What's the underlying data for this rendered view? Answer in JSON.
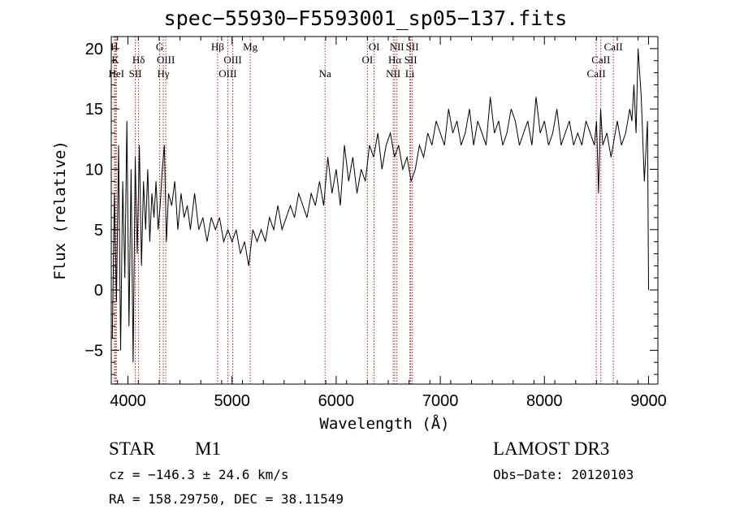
{
  "chart_data": {
    "type": "line",
    "title": "spec−55930−F5593001_sp05−137.fits",
    "xlabel": "Wavelength (Å)",
    "ylabel": "Flux (relative)",
    "xlim": [
      3840,
      9090
    ],
    "ylim": [
      -7.8,
      21
    ],
    "xticks": [
      4000,
      5000,
      6000,
      7000,
      8000,
      9000
    ],
    "yticks": [
      -5,
      0,
      5,
      10,
      15,
      20
    ],
    "xtick_labels": [
      "4000",
      "5000",
      "6000",
      "7000",
      "8000",
      "9000"
    ],
    "ytick_labels": [
      "−5",
      "0",
      "5",
      "10",
      "15",
      "20"
    ],
    "series": [
      {
        "name": "flux",
        "x": [
          3850,
          3870,
          3890,
          3910,
          3930,
          3950,
          3970,
          3990,
          4010,
          4030,
          4050,
          4070,
          4090,
          4110,
          4130,
          4150,
          4170,
          4190,
          4210,
          4230,
          4250,
          4270,
          4290,
          4310,
          4330,
          4350,
          4370,
          4390,
          4420,
          4450,
          4480,
          4510,
          4540,
          4570,
          4600,
          4640,
          4680,
          4720,
          4760,
          4800,
          4840,
          4880,
          4920,
          4960,
          5000,
          5040,
          5080,
          5120,
          5160,
          5200,
          5240,
          5280,
          5320,
          5360,
          5400,
          5440,
          5480,
          5520,
          5560,
          5600,
          5640,
          5680,
          5720,
          5760,
          5800,
          5840,
          5880,
          5920,
          5960,
          6000,
          6040,
          6080,
          6120,
          6160,
          6200,
          6240,
          6280,
          6320,
          6360,
          6400,
          6440,
          6480,
          6520,
          6560,
          6600,
          6640,
          6680,
          6720,
          6760,
          6800,
          6840,
          6880,
          6920,
          6960,
          7000,
          7040,
          7080,
          7120,
          7160,
          7200,
          7240,
          7280,
          7320,
          7360,
          7400,
          7440,
          7480,
          7520,
          7560,
          7600,
          7640,
          7680,
          7720,
          7760,
          7800,
          7840,
          7880,
          7920,
          7960,
          8000,
          8040,
          8080,
          8120,
          8160,
          8200,
          8240,
          8280,
          8320,
          8360,
          8400,
          8440,
          8480,
          8500,
          8520,
          8540,
          8560,
          8600,
          8640,
          8660,
          8680,
          8700,
          8740,
          8780,
          8820,
          8840,
          8860,
          8880,
          8900,
          8930,
          8960,
          8990,
          9000
        ],
        "values": [
          -4,
          8,
          -1,
          12,
          -5,
          9,
          1,
          14,
          -3,
          10,
          -6,
          11,
          3,
          12,
          2,
          9,
          5,
          10,
          4,
          8,
          6,
          9,
          5,
          7,
          10,
          12,
          4,
          8,
          7,
          9,
          5,
          8,
          6,
          7,
          5,
          8,
          5,
          6,
          4,
          6,
          5,
          6,
          4,
          5,
          4,
          5,
          3,
          4,
          2,
          5,
          4,
          5,
          4,
          6,
          5,
          7,
          5,
          6,
          7,
          6,
          8,
          7,
          6,
          8,
          7,
          9,
          7,
          11,
          8,
          10,
          7,
          12,
          9,
          11,
          8,
          10,
          9,
          12,
          11,
          13,
          10,
          12,
          13,
          11,
          12,
          10,
          11,
          9,
          10,
          12,
          11,
          13,
          12,
          14,
          13,
          12,
          15,
          13,
          14,
          12,
          13,
          15,
          12,
          14,
          13,
          12,
          16,
          13,
          14,
          12,
          13,
          15,
          14,
          12,
          13,
          14,
          12,
          16,
          13,
          14,
          12,
          13,
          15,
          12,
          13,
          14,
          12,
          13,
          12,
          14,
          13,
          12,
          14,
          8,
          15,
          12,
          13,
          11,
          12,
          13,
          14,
          12,
          13,
          15,
          14,
          17,
          13,
          20,
          16,
          9,
          14,
          0
        ]
      }
    ],
    "line_markers": [
      {
        "wl": 3870,
        "row": 1,
        "label": "H"
      },
      {
        "wl": 3880,
        "row": 2,
        "label": "K"
      },
      {
        "wl": 3889,
        "row": 3,
        "label": "HeI"
      },
      {
        "wl": 4071,
        "row": 3,
        "label": "SII"
      },
      {
        "wl": 4102,
        "row": 2,
        "label": "Hδ"
      },
      {
        "wl": 4305,
        "row": 1,
        "label": "G"
      },
      {
        "wl": 4340,
        "row": 3,
        "label": "Hγ"
      },
      {
        "wl": 4364,
        "row": 2,
        "label": "OIII"
      },
      {
        "wl": 4861,
        "row": 1,
        "label": "Hβ"
      },
      {
        "wl": 4959,
        "row": 3,
        "label": "OIII"
      },
      {
        "wl": 5007,
        "row": 2,
        "label": "OIII"
      },
      {
        "wl": 5175,
        "row": 1,
        "label": "Mg"
      },
      {
        "wl": 5893,
        "row": 3,
        "label": "Na"
      },
      {
        "wl": 6300,
        "row": 2,
        "label": "OI"
      },
      {
        "wl": 6364,
        "row": 1,
        "label": "OI"
      },
      {
        "wl": 6548,
        "row": 3,
        "label": "NII"
      },
      {
        "wl": 6563,
        "row": 2,
        "label": "Hα"
      },
      {
        "wl": 6583,
        "row": 1,
        "label": "NII"
      },
      {
        "wl": 6708,
        "row": 3,
        "label": "Li"
      },
      {
        "wl": 6716,
        "row": 2,
        "label": "SII"
      },
      {
        "wl": 6731,
        "row": 1,
        "label": "SII"
      },
      {
        "wl": 8498,
        "row": 3,
        "label": "CaII"
      },
      {
        "wl": 8542,
        "row": 2,
        "label": "CaII"
      },
      {
        "wl": 8662,
        "row": 1,
        "label": "CaII"
      }
    ]
  },
  "info": {
    "object_class": "STAR",
    "subclass": "M1",
    "survey": "LAMOST DR3",
    "cz": "cz = −146.3 ± 24.6 km/s",
    "obs_date": "Obs−Date: 20120103",
    "radec": "RA = 158.29750, DEC =  38.11549"
  },
  "colors": {
    "spectrum": "#000000",
    "marker": "#b22222",
    "axis": "#000000",
    "background": "#ffffff"
  }
}
